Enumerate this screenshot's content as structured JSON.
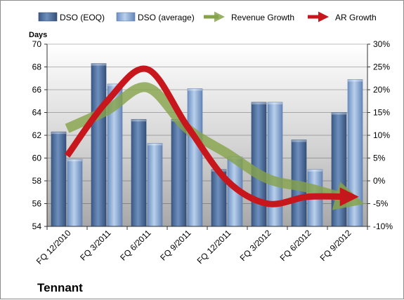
{
  "chart_data": {
    "type": "bar",
    "categories": [
      "FQ 12/2010",
      "FQ 3/2011",
      "FQ 6/2011",
      "FQ 9/2011",
      "FQ 12/2011",
      "FQ 3/2012",
      "FQ 6/2012",
      "FQ 9/2012"
    ],
    "series": [
      {
        "name": "DSO (EOQ)",
        "values": [
          62.3,
          68.3,
          63.4,
          63.4,
          59.0,
          64.9,
          61.6,
          64.0
        ],
        "color": "#4d6f9c"
      },
      {
        "name": "DSO (average)",
        "values": [
          59.9,
          66.5,
          61.3,
          66.1,
          60.1,
          64.9,
          59.0,
          66.9
        ],
        "color": "#87a9d6"
      }
    ],
    "lines": [
      {
        "name": "Revenue Growth",
        "values": [
          11.5,
          15.5,
          20.5,
          11.5,
          6.0,
          0.5,
          -1.5,
          -4.0
        ],
        "color": "#86a34a",
        "style": "arrow"
      },
      {
        "name": "AR Growth",
        "values": [
          5.5,
          17.5,
          24.5,
          12.0,
          0.0,
          -5.0,
          -3.5,
          -3.5
        ],
        "color": "#c8161d",
        "style": "arrow"
      }
    ],
    "y_left": {
      "label": "Days",
      "min": 54,
      "max": 70,
      "ticks": [
        "54",
        "56",
        "58",
        "60",
        "62",
        "64",
        "66",
        "68",
        "70"
      ]
    },
    "y_right": {
      "min": -10,
      "max": 30,
      "ticks": [
        "-10%",
        "-5%",
        "0%",
        "5%",
        "10%",
        "15%",
        "20%",
        "25%",
        "30%"
      ]
    },
    "grid": true,
    "legend_position": "top"
  },
  "company": "Tennant"
}
